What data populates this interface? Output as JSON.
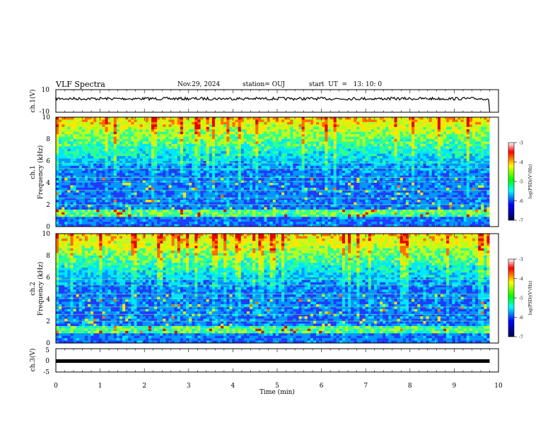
{
  "header": {
    "title": "VLF Spectra",
    "date": "Nov.29, 2024",
    "station": "station= OUJ",
    "start": "start  UT  =   13: 10: 0"
  },
  "chart_data": [
    {
      "type": "line",
      "ylabel": "ch.1(V)",
      "ylim": [
        -10,
        10
      ],
      "yticklabels": [
        "10",
        "-10"
      ],
      "xlim": [
        0,
        10
      ],
      "series": [
        {
          "x": [
            0,
            1,
            2,
            3,
            4,
            5,
            6,
            7,
            8,
            9,
            9.8
          ],
          "y": [
            2,
            2,
            2,
            2,
            2,
            2,
            2,
            2,
            2,
            2,
            2
          ]
        }
      ]
    },
    {
      "type": "heatmap",
      "ylabel": "ch.1\nFrequency (kHz)",
      "ylim": [
        0,
        10
      ],
      "yticks": [
        0,
        2,
        4,
        6,
        8,
        10
      ],
      "xlim": [
        0,
        10
      ],
      "colorbar": {
        "range": [
          -7,
          -3
        ],
        "ticks": [
          -3,
          -4,
          -5,
          -6,
          -7
        ],
        "label": "log(PSD)(V²/Hz)"
      }
    },
    {
      "type": "heatmap",
      "ylabel": "ch.2\nFrequency (kHz)",
      "ylim": [
        0,
        10
      ],
      "yticks": [
        0,
        2,
        4,
        6,
        8,
        10
      ],
      "xlim": [
        0,
        10
      ],
      "colorbar": {
        "range": [
          -7,
          -3
        ],
        "ticks": [
          -3,
          -4,
          -5,
          -6,
          -7
        ],
        "label": "log(PSD)(V²/Hz)"
      }
    },
    {
      "type": "line",
      "ylabel": "ch.3(V)",
      "ylim": [
        -5,
        5
      ],
      "yticklabels": [
        "5",
        "0",
        "-5"
      ],
      "xlim": [
        0,
        10
      ],
      "xlabel": "Time (min)",
      "xticks": [
        "0",
        "1",
        "2",
        "3",
        "4",
        "5",
        "6",
        "7",
        "8",
        "9",
        "10"
      ],
      "series": [
        {
          "x": [
            0,
            9.8
          ],
          "y": [
            0,
            0
          ]
        }
      ]
    }
  ],
  "colors": {
    "trace": "#000000",
    "spectrogram_scale": [
      "#00007f",
      "#0000ff",
      "#00ffff",
      "#00ff00",
      "#ffff00",
      "#ff7f00",
      "#ff0000"
    ]
  }
}
